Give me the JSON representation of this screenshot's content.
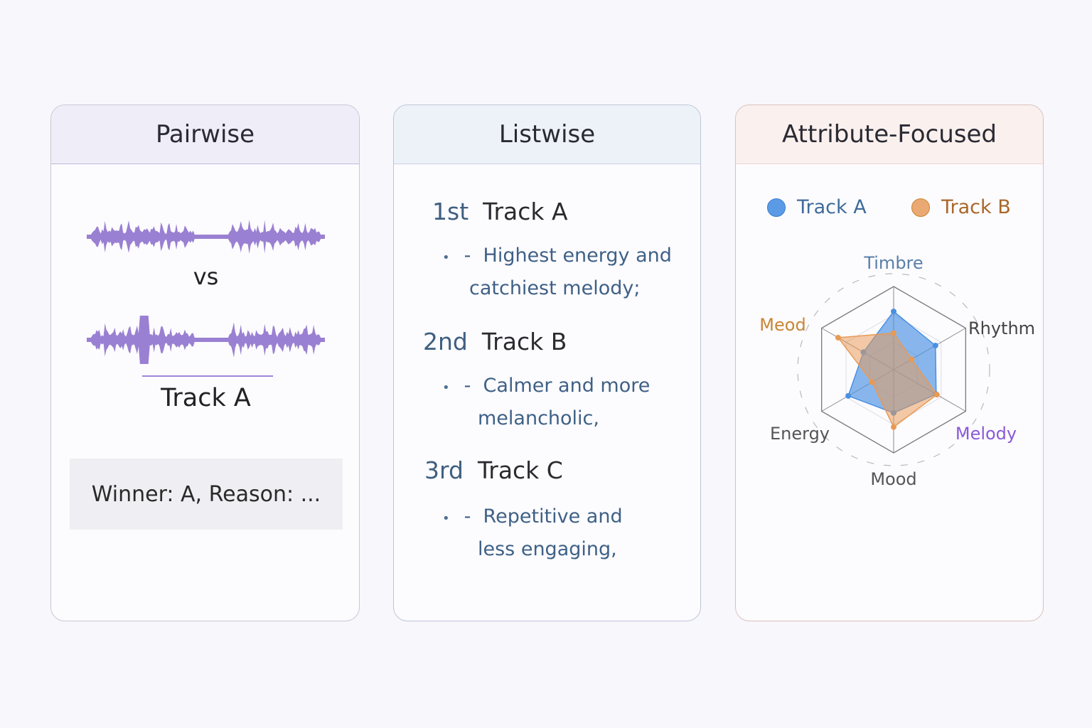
{
  "pairwise": {
    "title": "Pairwise",
    "vs": "vs",
    "winner": "Track A",
    "reason": "Winner: A, Reason: ...",
    "waveform_color": "#9a80d2"
  },
  "listwise": {
    "title": "Listwise",
    "items": [
      {
        "ordinal": "1st",
        "track": "Track A",
        "bullet": "•",
        "dash": "-",
        "line1": "Highest energy and",
        "line2": "catchiest melody;"
      },
      {
        "ordinal": "2nd",
        "track": "Track B",
        "bullet": "•",
        "dash": "-",
        "line1": "Calmer and more",
        "line2": "melancholic,"
      },
      {
        "ordinal": "3rd",
        "track": "Track C",
        "bullet": "•",
        "dash": "-",
        "line1": "Repetitive and",
        "line2": "less engaging,"
      }
    ]
  },
  "attribute": {
    "title": "Attribute-Focused",
    "chart_data": {
      "type": "radar",
      "axes": [
        "Timbre",
        "Rhythm",
        "Melody",
        "Mood",
        "Energy",
        "Meod"
      ],
      "axis_colors": [
        "#5a7fa8",
        "#444444",
        "#8a5ad8",
        "#555555",
        "#555555",
        "#c98634"
      ],
      "range": [
        0,
        1
      ],
      "series": [
        {
          "name": "Track A",
          "color": "#4a90e2",
          "values": [
            0.7,
            0.58,
            0.59,
            0.52,
            0.63,
            0.42
          ]
        },
        {
          "name": "Track B",
          "color": "#e89a55",
          "values": [
            0.44,
            0.25,
            0.6,
            0.69,
            0.3,
            0.77
          ]
        }
      ],
      "legend": "top"
    }
  }
}
